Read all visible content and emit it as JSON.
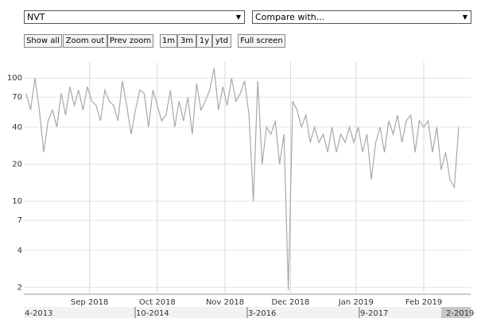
{
  "controls": {
    "symbol": "NVT",
    "compare": "Compare with...",
    "buttons": [
      "Show all",
      "Zoom out",
      "Prev zoom",
      "1m",
      "3m",
      "1y",
      "ytd",
      "Full screen"
    ]
  },
  "chart_data": {
    "type": "line",
    "log_scale": true,
    "grid": true,
    "series": [
      {
        "color": "#a8a8a8",
        "values": [
          75,
          55,
          100,
          55,
          25,
          45,
          55,
          40,
          75,
          50,
          85,
          60,
          80,
          55,
          85,
          65,
          60,
          45,
          80,
          65,
          60,
          45,
          95,
          60,
          35,
          55,
          80,
          75,
          40,
          80,
          60,
          45,
          50,
          80,
          40,
          65,
          45,
          70,
          35,
          90,
          55,
          65,
          80,
          120,
          55,
          85,
          60,
          100,
          65,
          75,
          95,
          50,
          10,
          95,
          20,
          40,
          35,
          45,
          20,
          35,
          1.9,
          65,
          55,
          40,
          50,
          30,
          40,
          30,
          35,
          25,
          40,
          25,
          35,
          30,
          40,
          30,
          40,
          25,
          35,
          15,
          30,
          40,
          25,
          45,
          35,
          50,
          30,
          45,
          50,
          25,
          45,
          40,
          45,
          25,
          40,
          18,
          25,
          15,
          13,
          40
        ]
      }
    ],
    "xlim": [
      0,
      99
    ],
    "xticks": [
      {
        "value": 14.5,
        "label": "Sep 2018"
      },
      {
        "value": 30,
        "label": "Oct 2018"
      },
      {
        "value": 45.5,
        "label": "Nov 2018"
      },
      {
        "value": 60.5,
        "label": "Dec 2018"
      },
      {
        "value": 75.5,
        "label": "Jan 2019"
      },
      {
        "value": 91,
        "label": "Feb 2019"
      }
    ],
    "ylim": [
      1.76,
      135
    ],
    "yticks": [
      2,
      4,
      7,
      10,
      20,
      40,
      70,
      100
    ]
  },
  "navigator": {
    "labels": [
      "4-2013",
      "10-2014",
      "3-2016",
      "9-2017",
      "2-2019"
    ]
  }
}
